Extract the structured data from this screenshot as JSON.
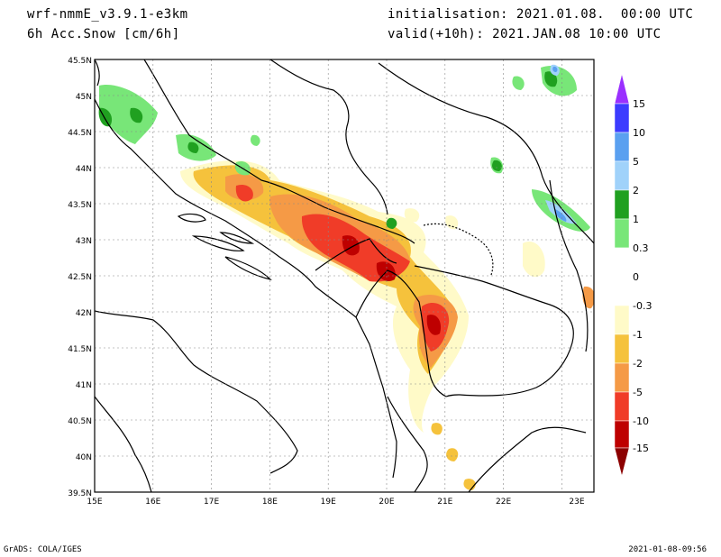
{
  "header": {
    "model": "wrf-nmmE_v3.9.1-e3km",
    "field": "6h Acc.Snow [cm/6h]",
    "init": "initialisation: 2021.01.08.  00:00 UTC",
    "valid": "valid(+10h): 2021.JAN.08 10:00 UTC"
  },
  "footer": {
    "credit": "GrADS: COLA/IGES",
    "timestamp": "2021-01-08-09:56"
  },
  "axes": {
    "lon_labels": [
      "15E",
      "16E",
      "17E",
      "18E",
      "19E",
      "20E",
      "21E",
      "22E",
      "23E"
    ],
    "lat_labels": [
      "45.5N",
      "45N",
      "44.5N",
      "44N",
      "43.5N",
      "43N",
      "42.5N",
      "42N",
      "41.5N",
      "41N",
      "40.5N",
      "40N",
      "39.5N"
    ]
  },
  "colorbar": {
    "labels": [
      "15",
      "10",
      "5",
      "2",
      "1",
      "0.3",
      "0",
      "-0.3",
      "-1",
      "-2",
      "-5",
      "-10",
      "-15"
    ],
    "colors": [
      "#9a30ff",
      "#3c3cff",
      "#5aa0f0",
      "#a0d2fa",
      "#20a020",
      "#78e678",
      "#ffffff",
      "#ffffff",
      "#fffac8",
      "#f5c23c",
      "#f59a46",
      "#f03c28",
      "#be0000",
      "#8c0000"
    ]
  },
  "palette": {
    "lightgreen": "#78e678",
    "green": "#20a020",
    "lightblue": "#a0d2fa",
    "blue": "#5aa0f0",
    "cream": "#fffac8",
    "yellow": "#f5c23c",
    "orange": "#f59a46",
    "red": "#f03c28",
    "darkred": "#be0000"
  }
}
